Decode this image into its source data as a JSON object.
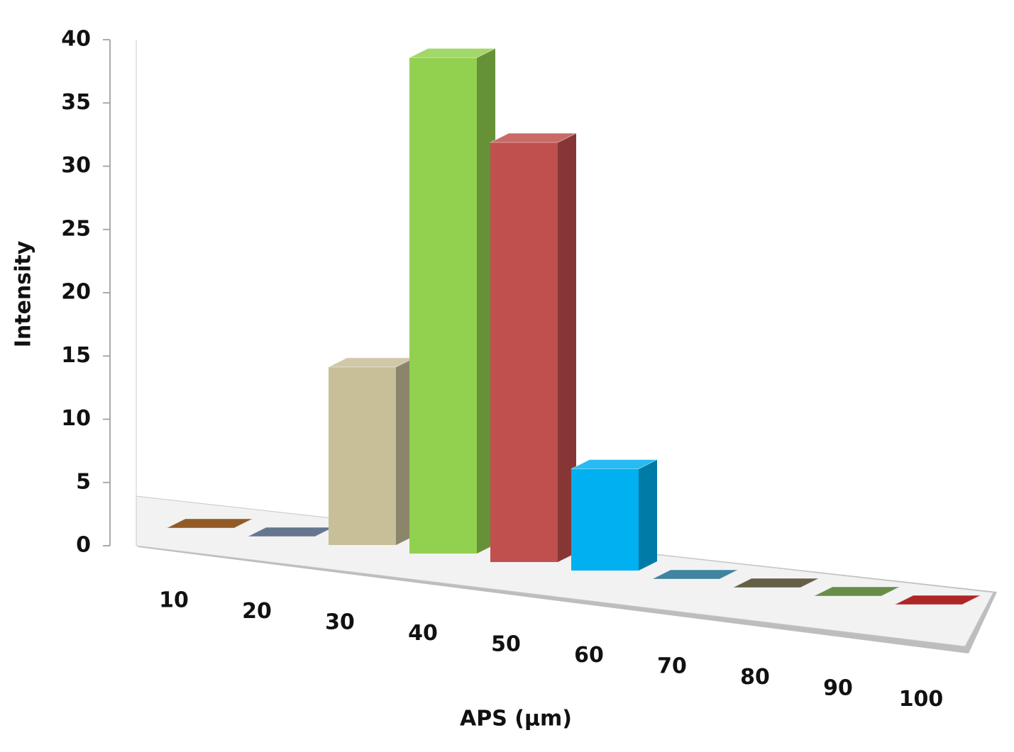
{
  "chart_data": {
    "type": "bar",
    "x_label": "APS (µm)",
    "y_label": "Intensity",
    "categories": [
      "10",
      "20",
      "30",
      "40",
      "50",
      "60",
      "70",
      "80",
      "90",
      "100"
    ],
    "values": [
      0,
      0,
      14,
      39,
      33,
      8,
      0,
      0,
      0,
      0
    ],
    "colors": [
      "#7f3f00",
      "#4a5f7c",
      "#c8bf98",
      "#92d050",
      "#c0504d",
      "#00b0f0",
      "#1f6f8f",
      "#4b4327",
      "#4f7a28",
      "#a00000"
    ],
    "ylim": [
      0,
      40
    ],
    "yticks": [
      0,
      5,
      10,
      15,
      20,
      25,
      30,
      35,
      40
    ]
  }
}
